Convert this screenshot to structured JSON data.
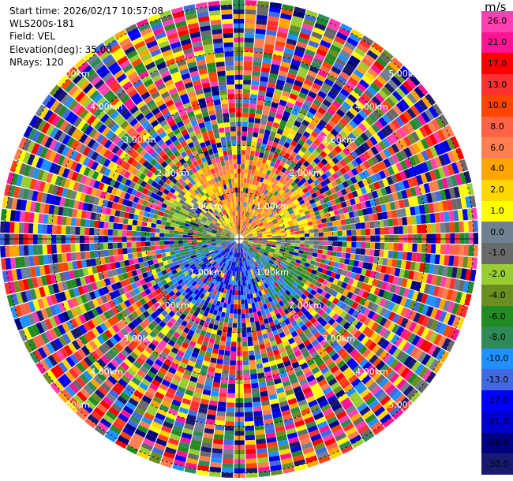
{
  "header": {
    "start_time": "Start time: 2026/02/17 10:57:08",
    "instrument": "WLS200s-181",
    "field": "Field: VEL",
    "elevation": "Elevation(deg): 35.00",
    "nrays": "NRays: 120"
  },
  "colorbar": {
    "unit": "m/s",
    "ticks": [
      "26.0",
      "21.0",
      "17.0",
      "13.0",
      "10.0",
      "8.0",
      "6.0",
      "4.0",
      "2.0",
      "1.0",
      "0.0",
      "-1.0",
      "-2.0",
      "-4.0",
      "-6.0",
      "-8.0",
      "-10.0",
      "-13.0",
      "-17.0",
      "-21.0",
      "-26.0",
      "-30.0"
    ],
    "colors": [
      "#ff3fb2",
      "#ff1493",
      "#ff0000",
      "#ff3030",
      "#ff4500",
      "#ff6347",
      "#ff7f50",
      "#ffa500",
      "#ffd700",
      "#ffff00",
      "#708090",
      "#696969",
      "#9acd32",
      "#6b8e23",
      "#228b22",
      "#2e8b57",
      "#1e90ff",
      "#4169e1",
      "#0000ff",
      "#0000cd",
      "#000080",
      "#191970"
    ]
  },
  "chart_data": {
    "type": "heatmap",
    "projection": "polar-ppi",
    "field": "VEL",
    "units": "m/s",
    "nrays": 120,
    "elevation_deg": 35.0,
    "range_rings_km": [
      1.0,
      2.0,
      3.0,
      4.0,
      5.0
    ],
    "ring_labels": [
      "1.00km",
      "2.00km",
      "3.00km",
      "4.00km",
      "5.00km"
    ],
    "color_levels": [
      -30,
      -26,
      -21,
      -17,
      -13,
      -10,
      -8,
      -6,
      -4,
      -2,
      -1,
      0,
      1,
      2,
      4,
      6,
      8,
      10,
      13,
      17,
      21,
      26
    ],
    "max_range_km": 5.1
  }
}
